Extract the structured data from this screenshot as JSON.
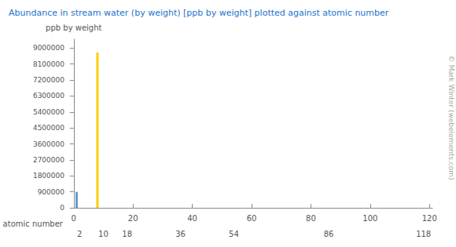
{
  "chart_data": {
    "type": "bar",
    "title": "Abundance in stream water (by weight) [ppb by weight] plotted against atomic number",
    "x": [
      1,
      8
    ],
    "values": [
      900000,
      8750000
    ],
    "colors": [
      "#6699cc",
      "#ffcc00"
    ],
    "ylabel": "ppb by weight",
    "xlabel": "atomic number",
    "xlim": [
      -1,
      121
    ],
    "xticks": [
      0,
      20,
      40,
      60,
      80,
      100,
      120
    ],
    "x2ticks": [
      2,
      10,
      18,
      36,
      54,
      86,
      118
    ],
    "ylim": [
      0,
      9500000
    ],
    "yticks": [
      0,
      900000,
      1800000,
      2700000,
      3600000,
      4500000,
      5400000,
      6300000,
      7200000,
      8100000,
      9000000
    ],
    "grid": false,
    "annotations": [
      "© Mark Winter (webelements.com)"
    ]
  }
}
